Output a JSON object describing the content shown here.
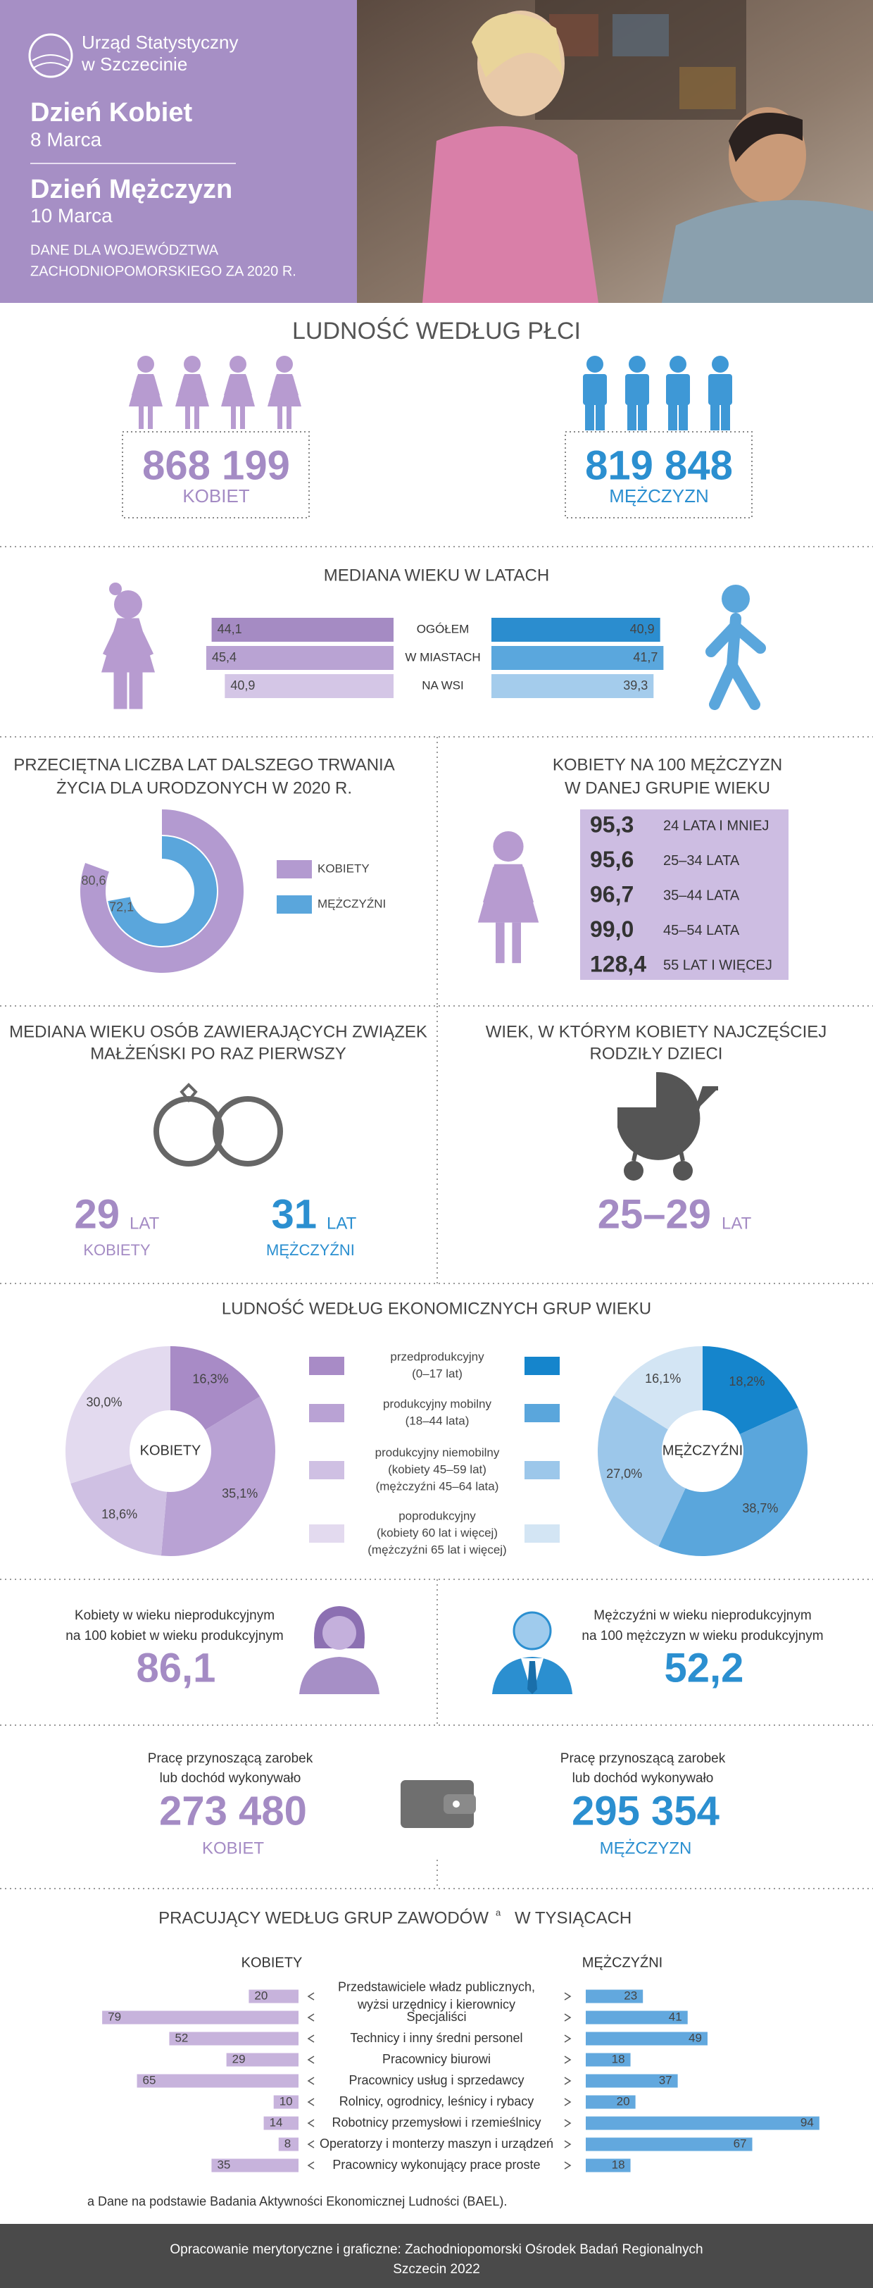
{
  "header": {
    "logo": [
      "Urząd Statystyczny",
      "w Szczecinie"
    ],
    "women_day": "Dzień Kobiet",
    "women_date": "8 Marca",
    "men_day": "Dzień Mężczyzn",
    "men_date": "10 Marca",
    "note": [
      "DANE DLA WOJEWÓDZTWA",
      "ZACHODNIOPOMORSKIEGO ZA 2020 R."
    ]
  },
  "population": {
    "title": "LUDNOŚĆ WEDŁUG PŁCI",
    "women": {
      "value": "868 199",
      "label": "KOBIET"
    },
    "men": {
      "value": "819 848",
      "label": "MĘŻCZYZN"
    }
  },
  "chart_data": [
    {
      "type": "butterfly",
      "title": "MEDIANA WIEKU W LATACH",
      "categories": [
        "OGÓŁEM",
        "W MIASTACH",
        "NA WSI"
      ],
      "series": [
        {
          "colors": [
            "#a58bc3",
            "#b9a3d3",
            "#d4c6e6"
          ],
          "values": [
            44.1,
            45.4,
            40.9
          ],
          "value_labels": [
            "44,1",
            "45,4",
            "40,9"
          ]
        },
        {
          "colors": [
            "#2b8dcf",
            "#5aa7dd",
            "#a4ccec"
          ],
          "values": [
            40.9,
            41.7,
            39.3
          ],
          "value_labels": [
            "40,9",
            "41,7",
            "39,3"
          ]
        }
      ]
    },
    {
      "type": "radial",
      "title": [
        "PRZECIĘTNA LICZBA LAT DALSZEGO TRWANIA",
        "ŻYCIA DLA URODZONYCH W 2020 R."
      ],
      "series": [
        {
          "name": "KOBIETY",
          "color": "#b39ad0",
          "values": [
            80.6
          ],
          "value_labels": [
            "80,6"
          ]
        },
        {
          "name": "MĘŻCZYŹNI",
          "color": "#5aa6dc",
          "values": [
            72.1
          ],
          "value_labels": [
            "72,1"
          ]
        }
      ]
    },
    {
      "type": "pie",
      "title": "LUDNOŚĆ WEDŁUG EKONOMICZNYCH GRUP WIEKU",
      "categories": [
        [
          "przedprodukcyjny",
          "(0–17 lat)"
        ],
        [
          "produkcyjny mobilny",
          "(18–44 lata)"
        ],
        [
          "produkcyjny niemobilny",
          "(kobiety 45–59 lat)",
          "(mężczyźni  45–64 lata)"
        ],
        [
          "poprodukcyjny",
          "(kobiety 60 lat i więcej)",
          "(mężczyźni  65  lat i więcej)"
        ]
      ],
      "series": [
        {
          "name": "KOBIETY",
          "colors": [
            "#a88bc6",
            "#b9a2d4",
            "#cfc0e3",
            "#e3daef"
          ],
          "values": [
            16.3,
            35.1,
            18.6,
            30.0
          ],
          "value_labels": [
            "16,3%",
            "35,1%",
            "18,6%",
            "30,0%"
          ]
        },
        {
          "name": "MĘŻCZYŹNI",
          "colors": [
            "#1585cc",
            "#5aa6dc",
            "#9cc7ea",
            "#d3e5f4"
          ],
          "values": [
            18.2,
            38.7,
            27.0,
            16.1
          ],
          "value_labels": [
            "18,2%",
            "38,7%",
            "27,0%",
            "16,1%"
          ]
        }
      ]
    },
    {
      "type": "butterfly",
      "title": "PRACUJĄCY WEDŁUG GRUP ZAWODÓW",
      "title_note": "a",
      "subtitle": "W TYSIĄCACH",
      "categories": [
        [
          "Przedstawiciele władz publicznych,",
          "wyżsi urzędnicy i kierownicy"
        ],
        [
          "Specjaliści"
        ],
        [
          "Technicy i inny średni personel"
        ],
        [
          "Pracownicy biurowi"
        ],
        [
          "Pracownicy usług  i sprzedawcy"
        ],
        [
          "Rolnicy, ogrodnicy, leśnicy  i rybacy"
        ],
        [
          "Robotnicy przemysłowi i rzemieślnicy"
        ],
        [
          "Operatorzy i monterzy maszyn i urządzeń"
        ],
        [
          "Pracownicy wykonujący prace proste"
        ]
      ],
      "series": [
        {
          "name": "KOBIETY",
          "color": "#c7b3dc",
          "values": [
            20,
            79,
            52,
            29,
            65,
            10,
            14,
            8,
            35
          ]
        },
        {
          "name": "MĘŻCZYŹNI",
          "color": "#62a8de",
          "values": [
            23,
            41,
            49,
            18,
            37,
            20,
            94,
            67,
            18
          ]
        }
      ],
      "footnote": "a Dane na podstawie Badania Aktywności Ekonomicznej Ludności (BAEL)."
    }
  ],
  "ratio": {
    "title": [
      "KOBIETY NA 100 MĘŻCZYZN",
      "W DANEJ GRUPIE  WIEKU"
    ],
    "rows": [
      [
        "95,3",
        "24 LATA I MNIEJ"
      ],
      [
        "95,6",
        "25–34 LATA"
      ],
      [
        "96,7",
        "35–44 LATA"
      ],
      [
        "99,0",
        "45–54 LATA"
      ],
      [
        "128,4",
        "55 LAT I WIĘCEJ"
      ]
    ]
  },
  "marriage": {
    "title": [
      "MEDIANA WIEKU OSÓB ZAWIERAJĄCYCH ZWIĄZEK",
      "MAŁŻEŃSKI PO RAZ PIERWSZY"
    ],
    "women": {
      "value": "29",
      "unit": "LAT",
      "label": "KOBIETY"
    },
    "men": {
      "value": "31",
      "unit": "LAT",
      "label": "MĘŻCZYŹNI"
    }
  },
  "births": {
    "title": [
      "WIEK, W KTÓRYM KOBIETY NAJCZĘŚCIEJ",
      "RODZIŁY DZIECI"
    ],
    "value": "25–29",
    "unit": "LAT"
  },
  "dependency": {
    "women": {
      "text": [
        "Kobiety w wieku nieprodukcyjnym",
        "na 100 kobiet w wieku produkcyjnym"
      ],
      "value": "86,1"
    },
    "men": {
      "text": [
        "Mężczyźni w wieku nieprodukcyjnym",
        "na 100 mężczyzn w wieku produkcyjnym"
      ],
      "value": "52,2"
    }
  },
  "working": {
    "women": {
      "text": [
        "Pracę przynoszącą zarobek",
        "lub dochód wykonywało"
      ],
      "value": "273 480",
      "label": "KOBIET"
    },
    "men": {
      "text": [
        "Pracę przynoszącą zarobek",
        "lub dochód wykonywało"
      ],
      "value": "295 354",
      "label": "MĘŻCZYZN"
    }
  },
  "footer": [
    "Opracowanie merytoryczne i graficzne: Zachodniopomorski Ośrodek Badań Regionalnych",
    "Szczecin 2022"
  ]
}
